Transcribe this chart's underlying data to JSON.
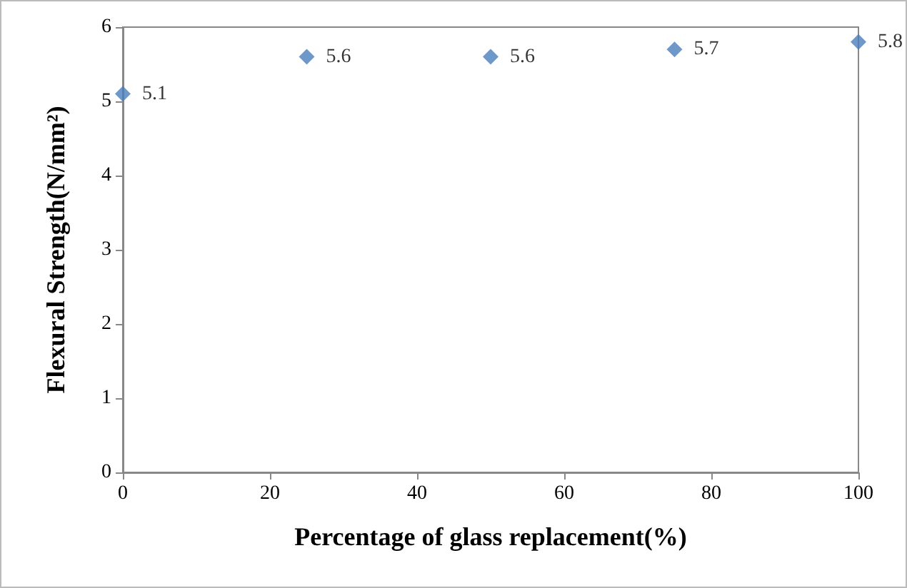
{
  "chart_data": {
    "type": "scatter",
    "xlabel": "Percentage of glass replacement(%)",
    "ylabel": "Flexural Strength(N/mm²)",
    "x": [
      0,
      25,
      50,
      75,
      100
    ],
    "series": [
      {
        "color": "#4a7ebb",
        "values": [
          5.1,
          5.6,
          5.6,
          5.7,
          5.8
        ]
      }
    ],
    "xlim": [
      0,
      100
    ],
    "xticks": [
      0,
      20,
      40,
      60,
      80,
      100
    ],
    "ylim": [
      0,
      6
    ],
    "yticks": [
      0,
      1,
      2,
      3,
      4,
      5,
      6
    ],
    "marker": "diamond",
    "data_labels": true
  }
}
